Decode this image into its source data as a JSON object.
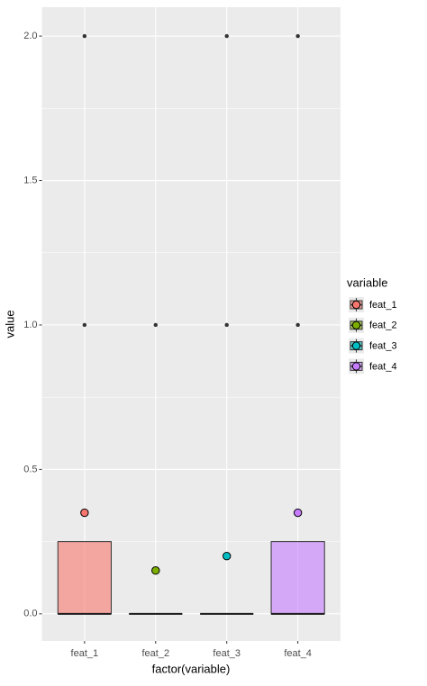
{
  "chart_data": {
    "type": "box",
    "x_label": "factor(variable)",
    "y_label": "value",
    "legend_title": "variable",
    "categories": [
      "feat_1",
      "feat_2",
      "feat_3",
      "feat_4"
    ],
    "colors": [
      "#F8766D",
      "#7CAE00",
      "#00BFC4",
      "#C77CFF"
    ],
    "boxes": [
      {
        "whisker_low": 0,
        "q1": 0,
        "median": 0,
        "q3": 0.25,
        "whisker_high": 0.25,
        "outliers": [
          1,
          2
        ],
        "mean": 0.35
      },
      {
        "whisker_low": 0,
        "q1": 0,
        "median": 0,
        "q3": 0,
        "whisker_high": 0,
        "outliers": [
          1
        ],
        "mean": 0.15
      },
      {
        "whisker_low": 0,
        "q1": 0,
        "median": 0,
        "q3": 0,
        "whisker_high": 0,
        "outliers": [
          1,
          2
        ],
        "mean": 0.2
      },
      {
        "whisker_low": 0,
        "q1": 0,
        "median": 0,
        "q3": 0.25,
        "whisker_high": 0.25,
        "outliers": [
          1,
          2
        ],
        "mean": 0.35
      }
    ],
    "ylim": [
      -0.094,
      2.1
    ],
    "yticks": [
      {
        "value": 0,
        "label": "0.0"
      },
      {
        "value": 0.5,
        "label": "0.5"
      },
      {
        "value": 1,
        "label": "1.0"
      },
      {
        "value": 1.5,
        "label": "1.5"
      },
      {
        "value": 2,
        "label": "2.0"
      }
    ],
    "y_minor_ticks": [
      0.25,
      0.75,
      1.25,
      1.75
    ],
    "grid": true,
    "legend": "right"
  }
}
